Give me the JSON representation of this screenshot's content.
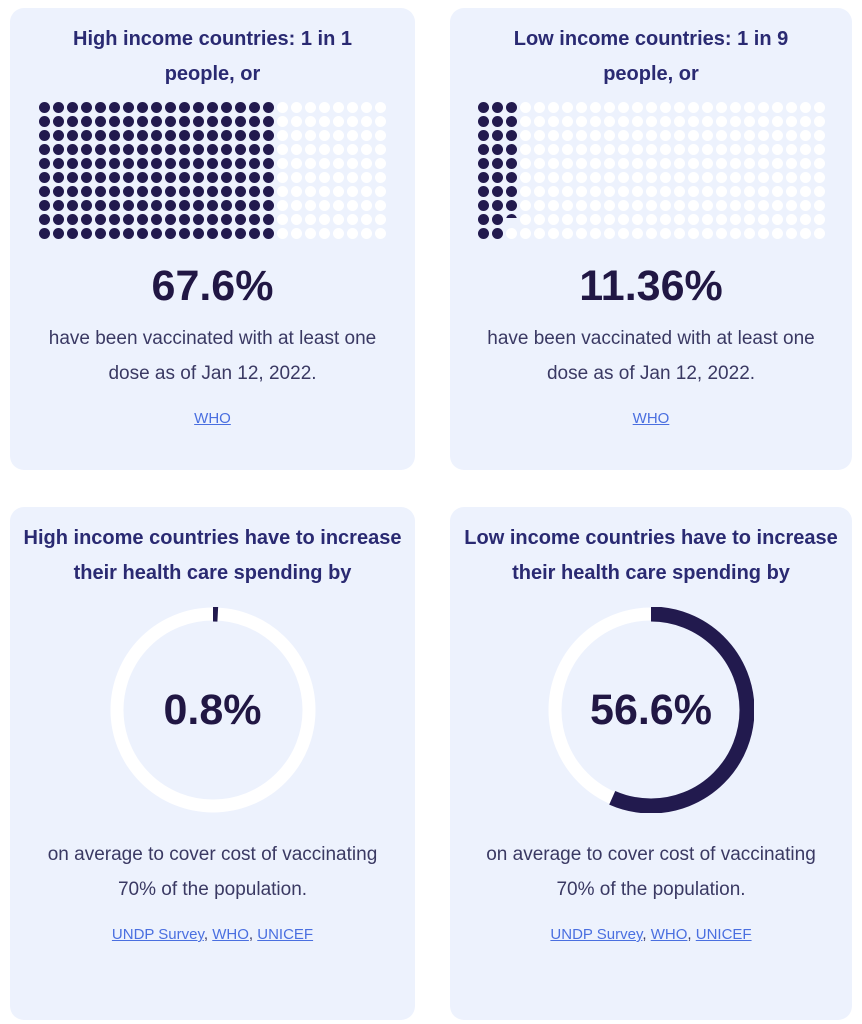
{
  "colors": {
    "page_background": "#ffffff",
    "card_background": "#edf2fd",
    "title_text": "#2a2a72",
    "stat_text": "#211744",
    "body_text": "#3a3963",
    "link_blue": "#4a6fe0",
    "dot_filled": "#221a4e",
    "dot_empty": "#ffffff",
    "donut_filled": "#221a4e",
    "donut_track": "#ffffff"
  },
  "cards": [
    {
      "title": "High income countries: 1 in 1 people, or",
      "stat": "67.6%",
      "description": "have been vaccinated with at least one dose as of Jan 12, 2022.",
      "sources": [
        "WHO"
      ]
    },
    {
      "title": "Low income countries: 1 in 9 people, or",
      "stat": "11.36%",
      "description": "have been vaccinated with at least one dose as of Jan 12, 2022.",
      "sources": [
        "WHO"
      ]
    },
    {
      "title": "High income countries have to increase their health care spending by",
      "stat": "0.8%",
      "description": "on average to cover cost of vaccinating 70% of the population.",
      "sources": [
        "UNDP Survey",
        "WHO",
        "UNICEF"
      ]
    },
    {
      "title": "Low income countries have to increase their health care spending by",
      "stat": "56.6%",
      "description": "on average to cover cost of vaccinating 70% of the population.",
      "sources": [
        "UNDP Survey",
        "WHO",
        "UNICEF"
      ]
    }
  ],
  "chart_data": [
    {
      "type": "waffle",
      "title": "High income countries: 1 in 1 people, or",
      "center_label": "67.6%",
      "value_pct": 67.6,
      "rows": 10,
      "columns": 25,
      "total_dots": 250,
      "filled_dots": 170,
      "fill_order": "column-major-top-to-bottom"
    },
    {
      "type": "waffle",
      "title": "Low income countries: 1 in 9 people, or",
      "center_label": "11.36%",
      "value_pct": 11.36,
      "rows": 10,
      "columns": 25,
      "total_dots": 250,
      "filled_dots": 28.4,
      "fill_order": "column-major-top-to-bottom"
    },
    {
      "type": "donut",
      "title": "High income countries have to increase their health care spending by",
      "center_label": "0.8%",
      "value_pct": 0.8,
      "start_angle_deg": 0,
      "direction": "clockwise"
    },
    {
      "type": "donut",
      "title": "Low income countries have to increase their health care spending by",
      "center_label": "56.6%",
      "value_pct": 56.6,
      "start_angle_deg": 0,
      "direction": "clockwise"
    }
  ]
}
